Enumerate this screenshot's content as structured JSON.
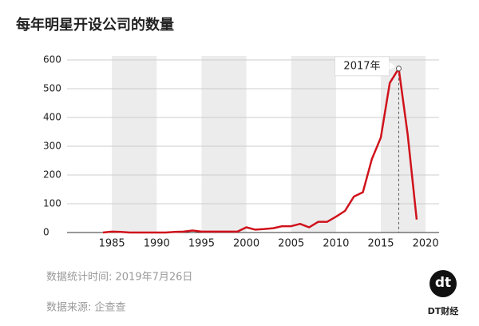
{
  "chart_data": {
    "type": "line",
    "title": "每年明星开设公司的数量",
    "x": [
      1984,
      1985,
      1986,
      1987,
      1988,
      1989,
      1990,
      1991,
      1992,
      1993,
      1994,
      1995,
      1996,
      1997,
      1998,
      1999,
      2000,
      2001,
      2002,
      2003,
      2004,
      2005,
      2006,
      2007,
      2008,
      2009,
      2010,
      2011,
      2012,
      2013,
      2014,
      2015,
      2016,
      2017,
      2018,
      2019
    ],
    "values": [
      0,
      3,
      2,
      0,
      0,
      0,
      0,
      0,
      2,
      3,
      7,
      3,
      3,
      3,
      3,
      3,
      18,
      10,
      12,
      15,
      22,
      22,
      30,
      18,
      37,
      37,
      55,
      75,
      125,
      140,
      255,
      330,
      520,
      570,
      340,
      45
    ],
    "color": "#d0121b",
    "xlim": [
      1980,
      2021.5
    ],
    "xticks": [
      1985,
      1990,
      1995,
      2000,
      2005,
      2010,
      2015,
      2020
    ],
    "ylim": [
      0,
      600
    ],
    "yticks": [
      0,
      100,
      200,
      300,
      400,
      500,
      600
    ],
    "grid": true,
    "annotation": {
      "text": "2017年",
      "x": 2017
    },
    "footer": {
      "date": "数据统计时间: 2019年7月26日",
      "source": "数据来源: 企查查",
      "brand": "DT财经",
      "logo": "dt"
    }
  }
}
